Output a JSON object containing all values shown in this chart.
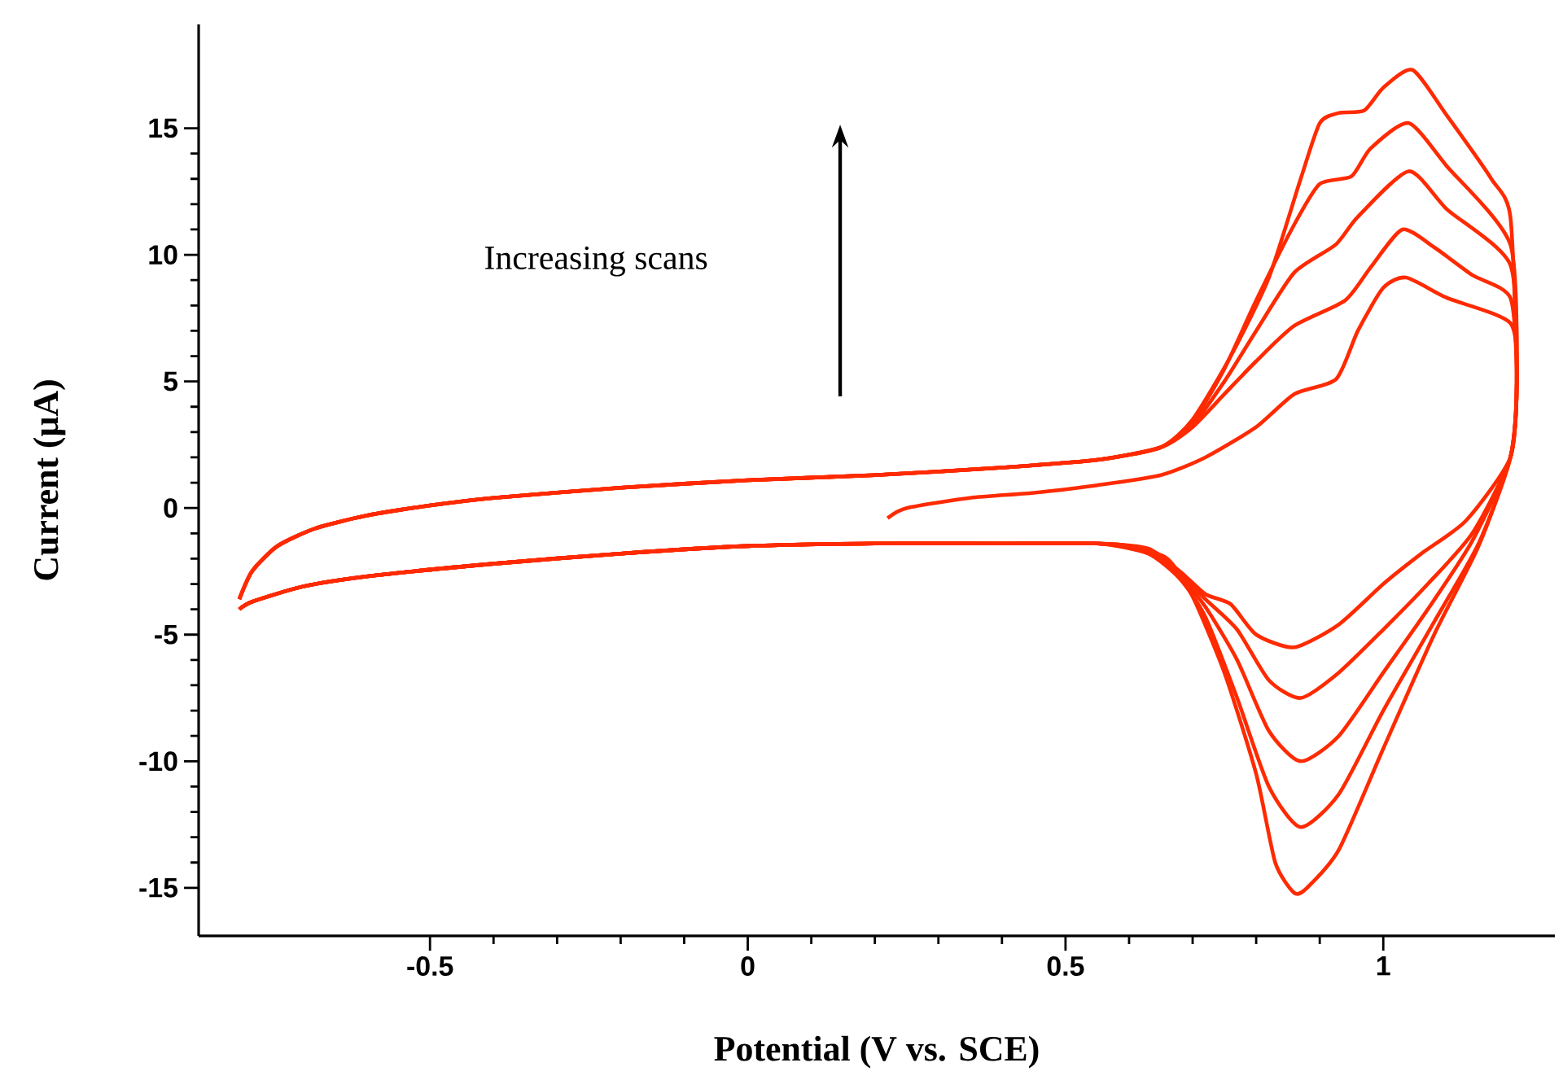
{
  "chart_data": {
    "type": "line",
    "xlabel": "Potential (V vs. SCE)",
    "ylabel": "Current (μA)",
    "annotations": [
      "Increasing scans"
    ],
    "xlim": [
      -0.864,
      1.27
    ],
    "ylim": [
      -16.9,
      19.1
    ],
    "xticks": [
      -0.5,
      0,
      0.5,
      1
    ],
    "yticks": [
      -15,
      -10,
      -5,
      0,
      5,
      10,
      15
    ],
    "series": [
      {
        "color": "#ff2a00",
        "x": [
          0.22,
          0.25,
          0.35,
          0.45,
          0.55,
          0.65,
          0.72,
          0.8,
          0.86,
          0.926,
          0.96,
          1.0,
          1.036,
          1.1,
          1.2,
          1.21,
          1.2,
          1.13,
          1.06,
          1.0,
          0.93,
          0.86,
          0.8,
          0.76,
          0.72,
          0.68,
          0.63,
          0.55,
          0.4,
          0.2,
          0,
          -0.2,
          -0.4,
          -0.6,
          -0.7,
          -0.78,
          -0.8
        ],
        "values": [
          -0.4,
          0.0,
          0.4,
          0.6,
          0.9,
          1.3,
          2.0,
          3.2,
          4.5,
          5.1,
          7.0,
          8.7,
          9.1,
          8.3,
          7.3,
          5.0,
          2.0,
          -0.5,
          -1.8,
          -3.0,
          -4.6,
          -5.5,
          -5.0,
          -3.8,
          -3.4,
          -2.5,
          -1.6,
          -1.4,
          -1.4,
          -1.4,
          -1.5,
          -1.8,
          -2.2,
          -2.7,
          -3.1,
          -3.7,
          -4.0
        ]
      },
      {
        "color": "#ff2a00",
        "x": [
          -0.8,
          -0.78,
          -0.74,
          -0.68,
          -0.6,
          -0.5,
          -0.4,
          -0.2,
          0,
          0.2,
          0.4,
          0.55,
          0.65,
          0.7,
          0.75,
          0.8,
          0.86,
          0.94,
          0.98,
          1.03,
          1.08,
          1.14,
          1.2,
          1.21,
          1.2,
          1.14,
          1.07,
          1.0,
          0.93,
          0.87,
          0.82,
          0.77,
          0.72,
          0.68,
          0.63,
          0.55,
          0.4,
          0.2,
          0,
          -0.2,
          -0.4,
          -0.6,
          -0.7,
          -0.78,
          -0.8
        ],
        "values": [
          -3.6,
          -2.5,
          -1.5,
          -0.8,
          -0.3,
          0.1,
          0.4,
          0.8,
          1.1,
          1.3,
          1.6,
          1.9,
          2.4,
          3.2,
          4.5,
          5.8,
          7.2,
          8.2,
          9.5,
          11.0,
          10.3,
          9.2,
          8.3,
          5.0,
          2.0,
          -1.0,
          -3.0,
          -4.8,
          -6.5,
          -7.5,
          -6.8,
          -4.8,
          -3.6,
          -2.6,
          -1.7,
          -1.4,
          -1.4,
          -1.4,
          -1.5,
          -1.8,
          -2.2,
          -2.7,
          -3.1,
          -3.7,
          -4.0
        ]
      },
      {
        "color": "#ff2a00",
        "x": [
          -0.8,
          -0.78,
          -0.74,
          -0.68,
          -0.6,
          -0.5,
          -0.4,
          -0.2,
          0,
          0.2,
          0.4,
          0.55,
          0.65,
          0.7,
          0.75,
          0.8,
          0.86,
          0.925,
          0.96,
          1.04,
          1.1,
          1.2,
          1.21,
          1.2,
          1.14,
          1.07,
          1.0,
          0.93,
          0.87,
          0.82,
          0.77,
          0.72,
          0.68,
          0.63,
          0.55,
          0.4,
          0.2,
          0,
          -0.2,
          -0.4,
          -0.6,
          -0.7,
          -0.78,
          -0.8
        ],
        "values": [
          -3.6,
          -2.5,
          -1.5,
          -0.8,
          -0.3,
          0.1,
          0.4,
          0.8,
          1.1,
          1.3,
          1.6,
          1.9,
          2.4,
          3.3,
          5.0,
          7.0,
          9.3,
          10.4,
          11.5,
          13.3,
          11.8,
          9.6,
          5.0,
          2.0,
          -1.3,
          -4.0,
          -6.5,
          -9.0,
          -10.0,
          -8.8,
          -6.0,
          -3.9,
          -2.7,
          -1.7,
          -1.4,
          -1.4,
          -1.4,
          -1.5,
          -1.8,
          -2.2,
          -2.7,
          -3.1,
          -3.7,
          -4.0
        ]
      },
      {
        "color": "#ff2a00",
        "x": [
          -0.8,
          -0.78,
          -0.74,
          -0.68,
          -0.6,
          -0.5,
          -0.4,
          -0.2,
          0,
          0.2,
          0.4,
          0.55,
          0.65,
          0.7,
          0.75,
          0.8,
          0.86,
          0.9,
          0.95,
          0.98,
          1.04,
          1.1,
          1.2,
          1.21,
          1.2,
          1.15,
          1.08,
          1.0,
          0.93,
          0.87,
          0.82,
          0.77,
          0.72,
          0.68,
          0.63,
          0.55,
          0.4,
          0.2,
          0,
          -0.2,
          -0.4,
          -0.6,
          -0.7,
          -0.78,
          -0.8
        ],
        "values": [
          -3.6,
          -2.5,
          -1.5,
          -0.8,
          -0.3,
          0.1,
          0.4,
          0.8,
          1.1,
          1.3,
          1.6,
          1.9,
          2.4,
          3.4,
          5.5,
          8.2,
          11.2,
          12.8,
          13.1,
          14.2,
          15.2,
          13.5,
          10.4,
          5.0,
          2.0,
          -1.4,
          -4.5,
          -8.0,
          -11.3,
          -12.6,
          -11.0,
          -7.5,
          -4.3,
          -2.8,
          -1.8,
          -1.4,
          -1.4,
          -1.4,
          -1.5,
          -1.8,
          -2.2,
          -2.7,
          -3.1,
          -3.7,
          -4.0
        ]
      },
      {
        "color": "#ff2a00",
        "x": [
          -0.8,
          -0.78,
          -0.74,
          -0.68,
          -0.6,
          -0.5,
          -0.4,
          -0.2,
          0,
          0.2,
          0.4,
          0.55,
          0.65,
          0.7,
          0.76,
          0.82,
          0.87,
          0.9,
          0.93,
          0.97,
          1.0,
          1.046,
          1.1,
          1.17,
          1.2,
          1.21,
          1.2,
          1.15,
          1.08,
          1.0,
          0.93,
          0.88,
          0.86,
          0.83,
          0.8,
          0.75,
          0.7,
          0.66,
          0.6,
          0.55,
          0.4,
          0.2,
          0,
          -0.2,
          -0.4,
          -0.6,
          -0.7,
          -0.78,
          -0.8
        ],
        "values": [
          -3.6,
          -2.5,
          -1.5,
          -0.8,
          -0.3,
          0.1,
          0.4,
          0.8,
          1.1,
          1.3,
          1.6,
          1.9,
          2.4,
          3.5,
          6.0,
          9.1,
          13.0,
          15.2,
          15.6,
          15.7,
          16.6,
          17.3,
          15.5,
          13.0,
          11.5,
          5.0,
          2.0,
          -1.5,
          -5.0,
          -9.5,
          -13.5,
          -15.0,
          -15.2,
          -14.0,
          -10.5,
          -6.5,
          -3.5,
          -2.0,
          -1.5,
          -1.4,
          -1.4,
          -1.4,
          -1.5,
          -1.8,
          -2.2,
          -2.7,
          -3.1,
          -3.7,
          -4.0
        ]
      }
    ]
  }
}
